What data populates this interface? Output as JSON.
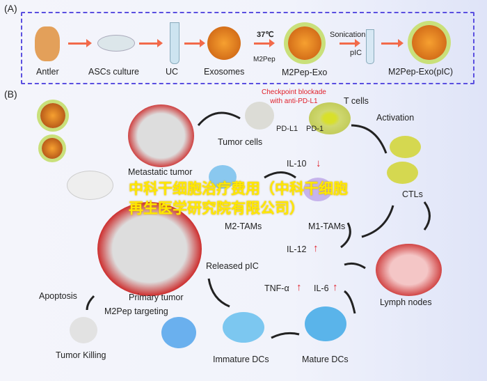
{
  "panel_a": {
    "label": "(A)",
    "steps": [
      "Antler",
      "ASCs culture",
      "UC",
      "Exosomes",
      "M2Pep-Exo",
      "M2Pep-Exo(pIC)"
    ],
    "temp": "37℃",
    "m2pep": "M2Pep",
    "sonication": "Sonication",
    "pic": "pIC"
  },
  "panel_b": {
    "label": "(B)",
    "checkpoint": "Checkpoint blockade\nwith anti-PD-L1",
    "t_cells": "T cells",
    "pd_l1": "PD-L1",
    "pd_1": "PD-1",
    "tumor_cells": "Tumor cells",
    "activation": "Activation",
    "metastatic": "Metastatic tumor",
    "il10": "IL-10",
    "m2_tams": "M2-TAMs",
    "m1_tams": "M1-TAMs",
    "ctls": "CTLs",
    "il12": "IL-12",
    "released_pic": "Released pIC",
    "primary": "Primary tumor",
    "tnf": "TNF-α",
    "il6": "IL-6",
    "lymph": "Lymph nodes",
    "apoptosis": "Apoptosis",
    "m2pep_targeting": "M2Pep targeting",
    "tumor_killing": "Tumor Killing",
    "immature": "Immature DCs",
    "mature": "Mature DCs",
    "down": "↓",
    "up": "↑"
  },
  "watermark": "中科干细胞治疗费用（中科干细胞再生医学研究院有限公司）"
}
